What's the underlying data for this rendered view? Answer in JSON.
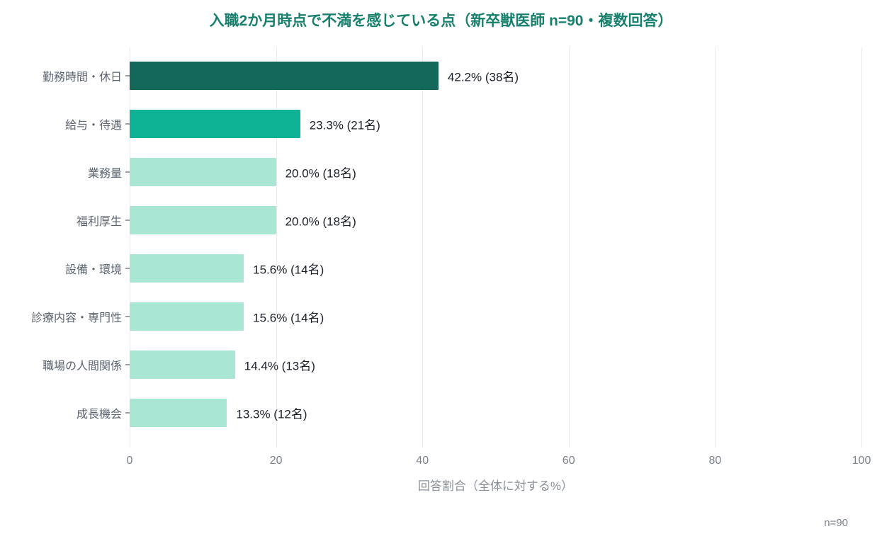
{
  "footnote": "n=90",
  "colors": {
    "title": "#17806d",
    "bar_dark": "#14685a",
    "bar_medium": "#0db394",
    "bar_light": "#a9e6d3",
    "grid": "#ebebeb",
    "axis_text": "#7b828c",
    "category_text": "#5b6470",
    "value_text": "#1a1f29"
  },
  "chart_data": {
    "type": "bar",
    "orientation": "horizontal",
    "title": "入職2か月時点で不満を感じている点（新卒獣医師 n=90・複数回答）",
    "categories": [
      "勤務時間・休日",
      "給与・待遇",
      "業務量",
      "福利厚生",
      "設備・環境",
      "診療内容・専門性",
      "職場の人間関係",
      "成長機会"
    ],
    "values": [
      42.2,
      23.3,
      20.0,
      20.0,
      15.6,
      15.6,
      14.4,
      13.3
    ],
    "counts": [
      38,
      21,
      18,
      18,
      14,
      14,
      13,
      12
    ],
    "value_labels": [
      "42.2% (38名)",
      "23.3% (21名)",
      "20.0% (18名)",
      "20.0% (18名)",
      "15.6% (14名)",
      "15.6% (14名)",
      "14.4% (13名)",
      "13.3% (12名)"
    ],
    "bar_colors": [
      "#14685a",
      "#0db394",
      "#a9e6d3",
      "#a9e6d3",
      "#a9e6d3",
      "#a9e6d3",
      "#a9e6d3",
      "#a9e6d3"
    ],
    "xlabel": "回答割合（全体に対する%）",
    "xlim": [
      0,
      100
    ],
    "xticks": [
      0,
      20,
      40,
      60,
      80,
      100
    ],
    "grid": true,
    "legend": false,
    "sample_size": 90
  }
}
